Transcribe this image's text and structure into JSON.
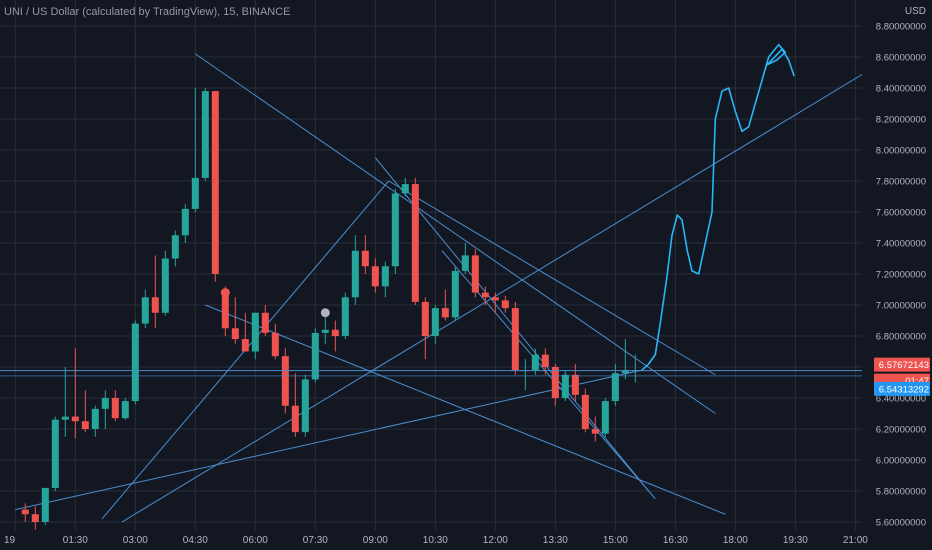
{
  "header": {
    "symbol_title": "UNI / US Dollar (calculated by TradingView), 15, BINANCE"
  },
  "price_axis": {
    "unit": "USD",
    "ticks": [
      "8.80000000",
      "8.60000000",
      "8.40000000",
      "8.20000000",
      "8.00000000",
      "7.80000000",
      "7.60000000",
      "7.40000000",
      "7.20000000",
      "7.00000000",
      "6.80000000",
      "6.60000000",
      "6.40000000",
      "6.20000000",
      "6.00000000",
      "5.80000000",
      "5.60000000"
    ],
    "last_price_label": "6.57672143",
    "countdown_label": "01:47",
    "alert_price_label": "6.54313292"
  },
  "time_axis": {
    "ticks": [
      "19",
      "01:30",
      "03:00",
      "04:30",
      "06:00",
      "07:30",
      "09:00",
      "10:30",
      "12:00",
      "13:30",
      "15:00",
      "16:30",
      "18:00",
      "19:30",
      "21:00"
    ]
  },
  "colors": {
    "background": "#131722",
    "grid": "#2a2e39",
    "up": "#26a69a",
    "down": "#ef5350",
    "drawing": "#2962ff",
    "trendline": "#4a8fd0",
    "freehand": "#29b6f6",
    "text": "#b2b5be"
  },
  "chart_data": {
    "type": "candlestick",
    "title": "UNI / US Dollar (calculated by TradingView), 15, BINANCE",
    "interval": "15",
    "ylabel": "USD",
    "ylim": [
      5.6,
      8.85
    ],
    "xlim": [
      "00:00",
      "21:30"
    ],
    "grid": true,
    "candles": [
      {
        "t": "00:15",
        "o": 5.68,
        "h": 5.72,
        "l": 5.6,
        "c": 5.65
      },
      {
        "t": "00:30",
        "o": 5.65,
        "h": 5.7,
        "l": 5.55,
        "c": 5.6
      },
      {
        "t": "00:45",
        "o": 5.6,
        "h": 5.82,
        "l": 5.58,
        "c": 5.82
      },
      {
        "t": "01:00",
        "o": 5.82,
        "h": 6.28,
        "l": 5.8,
        "c": 6.26
      },
      {
        "t": "01:15",
        "o": 6.26,
        "h": 6.6,
        "l": 6.15,
        "c": 6.28
      },
      {
        "t": "01:30",
        "o": 6.28,
        "h": 6.72,
        "l": 6.14,
        "c": 6.25
      },
      {
        "t": "01:45",
        "o": 6.25,
        "h": 6.45,
        "l": 6.18,
        "c": 6.2
      },
      {
        "t": "02:00",
        "o": 6.2,
        "h": 6.35,
        "l": 6.15,
        "c": 6.33
      },
      {
        "t": "02:15",
        "o": 6.33,
        "h": 6.45,
        "l": 6.2,
        "c": 6.4
      },
      {
        "t": "02:30",
        "o": 6.4,
        "h": 6.45,
        "l": 6.25,
        "c": 6.27
      },
      {
        "t": "02:45",
        "o": 6.27,
        "h": 6.4,
        "l": 6.26,
        "c": 6.38
      },
      {
        "t": "03:00",
        "o": 6.38,
        "h": 6.9,
        "l": 6.36,
        "c": 6.88
      },
      {
        "t": "03:15",
        "o": 6.88,
        "h": 7.1,
        "l": 6.85,
        "c": 7.05
      },
      {
        "t": "03:30",
        "o": 7.05,
        "h": 7.32,
        "l": 6.85,
        "c": 6.95
      },
      {
        "t": "03:45",
        "o": 6.95,
        "h": 7.35,
        "l": 6.93,
        "c": 7.3
      },
      {
        "t": "04:00",
        "o": 7.3,
        "h": 7.48,
        "l": 7.25,
        "c": 7.45
      },
      {
        "t": "04:15",
        "o": 7.45,
        "h": 7.65,
        "l": 7.4,
        "c": 7.62
      },
      {
        "t": "04:30",
        "o": 7.62,
        "h": 8.4,
        "l": 7.6,
        "c": 7.82
      },
      {
        "t": "04:45",
        "o": 7.82,
        "h": 8.4,
        "l": 7.8,
        "c": 8.38
      },
      {
        "t": "05:00",
        "o": 8.38,
        "h": 8.38,
        "l": 7.15,
        "c": 7.2
      },
      {
        "t": "05:15",
        "o": 7.1,
        "h": 7.12,
        "l": 6.8,
        "c": 6.85
      },
      {
        "t": "05:30",
        "o": 6.85,
        "h": 7.05,
        "l": 6.75,
        "c": 6.78
      },
      {
        "t": "05:45",
        "o": 6.78,
        "h": 6.95,
        "l": 6.7,
        "c": 6.7
      },
      {
        "t": "06:00",
        "o": 6.7,
        "h": 6.95,
        "l": 6.65,
        "c": 6.95
      },
      {
        "t": "06:15",
        "o": 6.95,
        "h": 7.0,
        "l": 6.8,
        "c": 6.82
      },
      {
        "t": "06:30",
        "o": 6.82,
        "h": 6.88,
        "l": 6.65,
        "c": 6.67
      },
      {
        "t": "06:45",
        "o": 6.67,
        "h": 6.72,
        "l": 6.3,
        "c": 6.35
      },
      {
        "t": "07:00",
        "o": 6.35,
        "h": 6.56,
        "l": 6.15,
        "c": 6.18
      },
      {
        "t": "07:15",
        "o": 6.18,
        "h": 6.55,
        "l": 6.15,
        "c": 6.52
      },
      {
        "t": "07:30",
        "o": 6.52,
        "h": 6.85,
        "l": 6.5,
        "c": 6.82
      },
      {
        "t": "07:45",
        "o": 6.82,
        "h": 6.92,
        "l": 6.75,
        "c": 6.84
      },
      {
        "t": "08:00",
        "o": 6.84,
        "h": 6.9,
        "l": 6.7,
        "c": 6.8
      },
      {
        "t": "08:15",
        "o": 6.8,
        "h": 7.08,
        "l": 6.78,
        "c": 7.05
      },
      {
        "t": "08:30",
        "o": 7.05,
        "h": 7.45,
        "l": 7.0,
        "c": 7.35
      },
      {
        "t": "08:45",
        "o": 7.35,
        "h": 7.45,
        "l": 7.2,
        "c": 7.25
      },
      {
        "t": "09:00",
        "o": 7.25,
        "h": 7.3,
        "l": 7.08,
        "c": 7.12
      },
      {
        "t": "09:15",
        "o": 7.12,
        "h": 7.28,
        "l": 7.05,
        "c": 7.25
      },
      {
        "t": "09:30",
        "o": 7.25,
        "h": 7.75,
        "l": 7.2,
        "c": 7.72
      },
      {
        "t": "09:45",
        "o": 7.72,
        "h": 7.82,
        "l": 7.7,
        "c": 7.78
      },
      {
        "t": "10:00",
        "o": 7.78,
        "h": 7.82,
        "l": 7.0,
        "c": 7.02
      },
      {
        "t": "10:15",
        "o": 7.02,
        "h": 7.05,
        "l": 6.65,
        "c": 6.8
      },
      {
        "t": "10:30",
        "o": 6.8,
        "h": 7.0,
        "l": 6.75,
        "c": 6.98
      },
      {
        "t": "10:45",
        "o": 6.98,
        "h": 7.1,
        "l": 6.9,
        "c": 6.92
      },
      {
        "t": "11:00",
        "o": 6.92,
        "h": 7.25,
        "l": 6.9,
        "c": 7.22
      },
      {
        "t": "11:15",
        "o": 7.22,
        "h": 7.4,
        "l": 7.2,
        "c": 7.32
      },
      {
        "t": "11:30",
        "o": 7.32,
        "h": 7.36,
        "l": 7.05,
        "c": 7.08
      },
      {
        "t": "11:45",
        "o": 7.08,
        "h": 7.12,
        "l": 7.0,
        "c": 7.05
      },
      {
        "t": "12:00",
        "o": 7.05,
        "h": 7.08,
        "l": 6.95,
        "c": 7.03
      },
      {
        "t": "12:15",
        "o": 7.03,
        "h": 7.06,
        "l": 6.95,
        "c": 6.98
      },
      {
        "t": "12:30",
        "o": 6.98,
        "h": 7.02,
        "l": 6.55,
        "c": 6.58
      },
      {
        "t": "12:45",
        "o": 6.58,
        "h": 6.65,
        "l": 6.45,
        "c": 6.58
      },
      {
        "t": "13:00",
        "o": 6.58,
        "h": 6.72,
        "l": 6.55,
        "c": 6.68
      },
      {
        "t": "13:15",
        "o": 6.68,
        "h": 6.72,
        "l": 6.55,
        "c": 6.6
      },
      {
        "t": "13:30",
        "o": 6.6,
        "h": 6.62,
        "l": 6.35,
        "c": 6.4
      },
      {
        "t": "13:45",
        "o": 6.4,
        "h": 6.58,
        "l": 6.38,
        "c": 6.55
      },
      {
        "t": "14:00",
        "o": 6.55,
        "h": 6.62,
        "l": 6.38,
        "c": 6.42
      },
      {
        "t": "14:15",
        "o": 6.42,
        "h": 6.46,
        "l": 6.18,
        "c": 6.2
      },
      {
        "t": "14:30",
        "o": 6.2,
        "h": 6.28,
        "l": 6.12,
        "c": 6.17
      },
      {
        "t": "14:45",
        "o": 6.17,
        "h": 6.4,
        "l": 6.15,
        "c": 6.38
      },
      {
        "t": "15:00",
        "o": 6.38,
        "h": 6.62,
        "l": 6.35,
        "c": 6.56
      },
      {
        "t": "15:15",
        "o": 6.56,
        "h": 6.78,
        "l": 6.52,
        "c": 6.58
      },
      {
        "t": "15:30",
        "o": 6.58,
        "h": 6.68,
        "l": 6.5,
        "c": 6.58
      }
    ]
  }
}
